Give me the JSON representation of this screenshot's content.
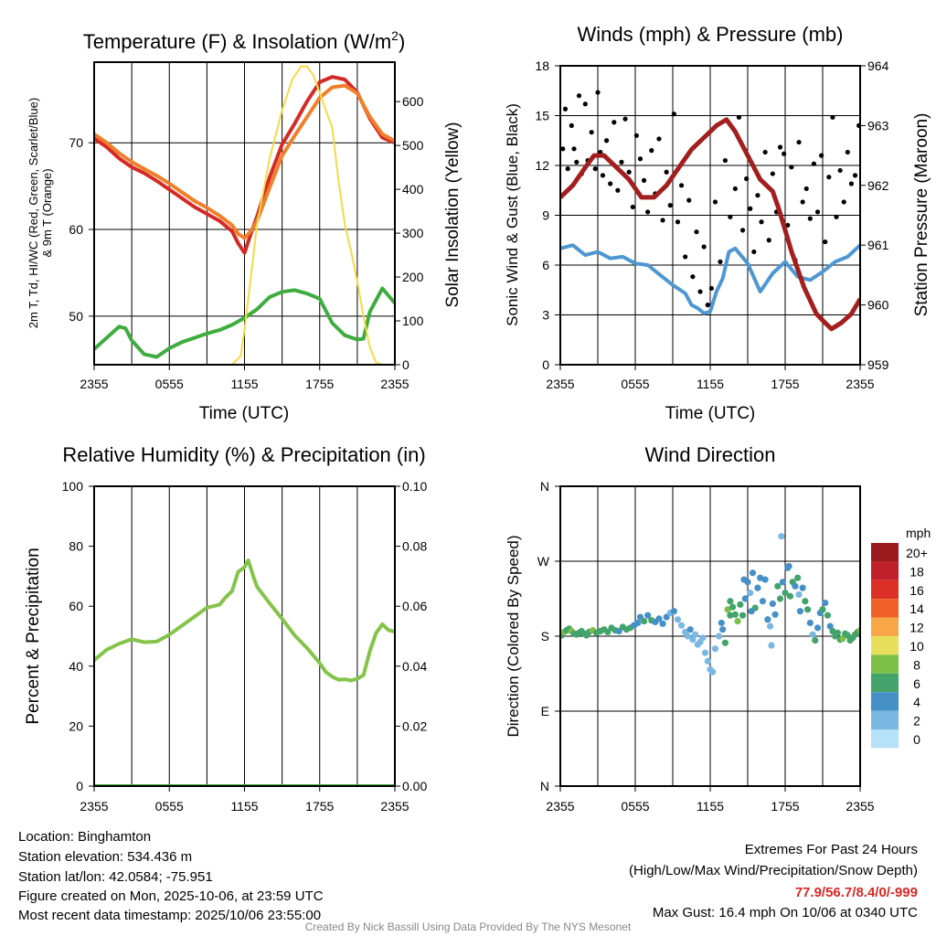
{
  "chart_data": [
    {
      "type": "line",
      "title": "Temperature (F) & Insolation (W/m²)",
      "title_main": "Temperature (F) & Insolation (W/m",
      "title_sup": "2",
      "title_end": ")",
      "xlabel": "Time (UTC)",
      "ylabel_line1": "2m T, Td, HI/WC (Red, Green, Scarlet/Blue)",
      "ylabel_line2": "& 9m T (Orange)",
      "ylabel_right": "Solar Insolation (Yellow)",
      "x_ticks": [
        "2355",
        "0555",
        "1155",
        "1755",
        "2355"
      ],
      "ylim": [
        44.4,
        79.3
      ],
      "y_ticks": [
        "50",
        "60",
        "70"
      ],
      "ylim_right": [
        0,
        690
      ],
      "y_ticks_right": [
        "0",
        "100",
        "200",
        "300",
        "400",
        "500",
        "600"
      ],
      "series": [
        {
          "name": "2m T",
          "color": "#d42a26",
          "axis": "left",
          "x": [
            0,
            1,
            2,
            3,
            4,
            5,
            6,
            7,
            8,
            9,
            10,
            11,
            11.5,
            12,
            12.5,
            13,
            14,
            15,
            16,
            17,
            18,
            19,
            20,
            21,
            22,
            23,
            24
          ],
          "values": [
            70.5,
            69.5,
            68.2,
            67.2,
            66.5,
            65.6,
            64.6,
            63.6,
            62.6,
            61.8,
            61,
            59.8,
            58.4,
            57.3,
            59.5,
            61.5,
            66,
            69.8,
            72.2,
            74.8,
            77,
            77.6,
            77.3,
            75.8,
            72.8,
            70.6,
            70
          ]
        },
        {
          "name": "9m T",
          "color": "#f07f2a",
          "axis": "left",
          "x": [
            0,
            1,
            2,
            3,
            4,
            5,
            6,
            7,
            8,
            9,
            10,
            11,
            11.5,
            12,
            12.5,
            13,
            14,
            15,
            16,
            17,
            18,
            19,
            20,
            21,
            22,
            23,
            24
          ],
          "values": [
            71,
            70,
            68.8,
            67.8,
            67,
            66.2,
            65.3,
            64.3,
            63.3,
            62.5,
            61.6,
            60.5,
            59.5,
            59,
            59.8,
            61,
            64.8,
            68.5,
            70.8,
            73,
            75.2,
            76.4,
            76.6,
            75.7,
            73,
            71,
            70.2
          ]
        },
        {
          "name": "2m Td",
          "color": "#3fac3f",
          "axis": "left",
          "x": [
            0,
            1,
            2,
            2.5,
            3,
            4,
            5,
            6,
            7,
            8,
            9,
            10,
            11,
            12,
            13,
            14,
            15,
            16,
            17,
            18,
            19,
            20,
            21,
            21.5,
            22,
            23,
            24
          ],
          "values": [
            46.2,
            47.5,
            48.8,
            48.6,
            47.2,
            45.6,
            45.3,
            46.3,
            47,
            47.5,
            48,
            48.4,
            49,
            49.8,
            50.8,
            52.2,
            52.8,
            53,
            52.6,
            52,
            49.2,
            47.8,
            47.3,
            47.4,
            50.5,
            53.2,
            51.5
          ]
        },
        {
          "name": "Solar Insolation",
          "color": "#f5d949",
          "axis": "right",
          "x": [
            0,
            11,
            11.7,
            12,
            12.5,
            13,
            14,
            15,
            15.8,
            16.5,
            17,
            17.5,
            18,
            18.5,
            19,
            19.5,
            20,
            20.5,
            21,
            21.5,
            22,
            22.5,
            23,
            24
          ],
          "values": [
            0,
            0,
            20,
            80,
            200,
            320,
            470,
            580,
            650,
            680,
            680,
            660,
            620,
            580,
            540,
            420,
            320,
            260,
            190,
            110,
            40,
            5,
            0,
            0
          ]
        }
      ]
    },
    {
      "type": "line",
      "title": "Winds (mph) & Pressure (mb)",
      "xlabel": "Time (UTC)",
      "ylabel": "Sonic Wind & Gust (Blue, Black)",
      "ylabel_right": "Station Pressure (Maroon)",
      "x_ticks": [
        "2355",
        "0555",
        "1155",
        "1755",
        "2355"
      ],
      "ylim": [
        0,
        18
      ],
      "y_ticks": [
        "0",
        "3",
        "6",
        "9",
        "12",
        "15",
        "18"
      ],
      "ylim_right": [
        959,
        964
      ],
      "y_ticks_right": [
        "959",
        "960",
        "961",
        "962",
        "963",
        "964"
      ],
      "series": [
        {
          "name": "Sonic Wind",
          "color": "#4d97d3",
          "axis": "left",
          "x": [
            0,
            1,
            2,
            3,
            4,
            5,
            6,
            7,
            8,
            9,
            10,
            10.5,
            11,
            11.5,
            12,
            12.5,
            13,
            13.5,
            14,
            15,
            16,
            17,
            18,
            19,
            20,
            21,
            22,
            23,
            24
          ],
          "values": [
            7,
            7.2,
            6.6,
            6.8,
            6.4,
            6.5,
            6.1,
            6,
            5.4,
            4.8,
            4.3,
            3.6,
            3.4,
            3.1,
            3.2,
            4.4,
            5.2,
            6.8,
            7,
            6.1,
            4.4,
            5.5,
            6.2,
            5.3,
            5.1,
            5.6,
            6.2,
            6.5,
            7.2
          ]
        },
        {
          "name": "Station Pressure",
          "color": "#a31e1e",
          "axis": "right",
          "x": [
            0,
            1,
            2,
            2.7,
            3.5,
            4.5,
            5.5,
            6.5,
            7.5,
            8.5,
            9.5,
            10.5,
            11.5,
            12.5,
            13.3,
            14,
            15,
            16,
            17,
            17.5,
            18.5,
            19.5,
            20.5,
            21.2,
            21.7,
            22.5,
            23.3,
            24
          ],
          "values": [
            961.8,
            962,
            962.3,
            962.5,
            962.5,
            962.3,
            962.1,
            961.8,
            961.8,
            962,
            962.3,
            962.6,
            962.8,
            963,
            963.1,
            962.9,
            962.5,
            962.1,
            961.9,
            961.6,
            960.9,
            960.3,
            959.85,
            959.7,
            959.6,
            959.7,
            959.85,
            960.1
          ]
        },
        {
          "name": "Gust",
          "color": "#000000",
          "axis": "left",
          "type": "scatter",
          "x": [
            0.2,
            0.4,
            0.6,
            0.9,
            1.1,
            1.3,
            1.5,
            1.7,
            2,
            2.2,
            2.5,
            2.8,
            3,
            3.2,
            3.4,
            3.7,
            4,
            4.3,
            4.6,
            4.9,
            5.2,
            5.5,
            5.8,
            6.1,
            6.4,
            6.7,
            7,
            7.3,
            7.6,
            7.9,
            8.2,
            8.5,
            8.8,
            9.1,
            9.4,
            9.7,
            10,
            10.3,
            10.6,
            10.9,
            11.2,
            11.5,
            11.8,
            12.1,
            12.4,
            12.8,
            13.2,
            13.6,
            14,
            14.3,
            14.6,
            14.9,
            15.2,
            15.5,
            15.8,
            16.1,
            16.4,
            16.7,
            17,
            17.3,
            17.6,
            17.9,
            18.2,
            18.5,
            18.8,
            19.1,
            19.4,
            19.7,
            20,
            20.3,
            20.6,
            20.9,
            21.2,
            21.5,
            21.8,
            22.1,
            22.4,
            22.7,
            23,
            23.3,
            23.6,
            23.9
          ],
          "values": [
            13,
            15.4,
            11.8,
            14.4,
            13,
            12.2,
            16.2,
            11.5,
            15.7,
            12.3,
            14,
            11.8,
            16.4,
            12.8,
            11.4,
            13.5,
            10.9,
            14.6,
            10.5,
            12.2,
            14.8,
            11.6,
            9.5,
            13.8,
            12.4,
            11.1,
            9.2,
            12.9,
            10.3,
            13.6,
            8.7,
            11.6,
            9.6,
            15.1,
            8.6,
            10.8,
            6.5,
            9.9,
            5.3,
            8,
            4.4,
            7.1,
            3.6,
            4.6,
            9.8,
            6.2,
            12.3,
            8.9,
            10.6,
            14.9,
            8.1,
            11.2,
            9.4,
            6.8,
            10.2,
            8.6,
            12.8,
            7.5,
            11.5,
            9.2,
            13.1,
            12.7,
            8.4,
            11.9,
            6.3,
            13.4,
            9.8,
            10.6,
            8.8,
            12.1,
            9.2,
            12.6,
            7.4,
            11.3,
            14.9,
            8.9,
            11.7,
            9.8,
            12.8,
            10.9,
            11.4,
            14.4
          ]
        }
      ]
    },
    {
      "type": "line",
      "title": "Relative Humidity (%) & Precipitation (in)",
      "ylabel": "Percent & Precipitation",
      "x_ticks": [
        "2355",
        "0555",
        "1155",
        "1755",
        "2355"
      ],
      "ylim": [
        0,
        100
      ],
      "y_ticks": [
        "0",
        "20",
        "40",
        "60",
        "80",
        "100"
      ],
      "ylim_right": [
        0,
        0.1
      ],
      "y_ticks_right": [
        "0.00",
        "0.02",
        "0.04",
        "0.06",
        "0.08",
        "0.10"
      ],
      "series": [
        {
          "name": "Relative Humidity",
          "color": "#83c449",
          "axis": "left",
          "x": [
            0,
            1,
            2,
            3,
            4,
            5,
            6,
            7,
            8,
            9,
            10,
            10.5,
            11,
            11.5,
            12,
            12.3,
            12.7,
            13,
            14,
            15,
            16,
            17,
            18,
            18.5,
            19,
            19.5,
            20,
            20.5,
            21,
            21.5,
            22,
            22.5,
            23,
            23.5,
            24
          ],
          "values": [
            42,
            45.5,
            47.5,
            49,
            48,
            48.2,
            50.5,
            53.5,
            56.5,
            59.5,
            60.5,
            63,
            65,
            71.5,
            73,
            75.3,
            70,
            66.5,
            61,
            55.8,
            50.3,
            46,
            41,
            38,
            36.5,
            35.5,
            35.6,
            35.2,
            35.8,
            37,
            45,
            51,
            54,
            52,
            51.5
          ]
        },
        {
          "name": "Precipitation",
          "color": "#3fac3f",
          "axis": "right",
          "x": [
            0,
            24
          ],
          "values": [
            0,
            0
          ]
        }
      ]
    },
    {
      "type": "scatter",
      "title": "Wind Direction",
      "ylabel": "Direction (Colored By Speed)",
      "x_ticks": [
        "2355",
        "0555",
        "1155",
        "1755",
        "2355"
      ],
      "ylim": [
        0,
        360
      ],
      "y_ticks": [
        "N",
        "E",
        "S",
        "W",
        "N"
      ],
      "colorbar": {
        "unit": "mph",
        "labels": [
          "20+",
          "18",
          "16",
          "14",
          "12",
          "10",
          "8",
          "6",
          "4",
          "2",
          "0"
        ],
        "colors": [
          "#9b1a1e",
          "#c0202a",
          "#dc3027",
          "#ef6127",
          "#f7a648",
          "#e8e05a",
          "#7cc04a",
          "#43a36a",
          "#4690c8",
          "#7ab8e2",
          "#b5e2f7"
        ]
      },
      "points": {
        "x": [
          0.1,
          0.3,
          0.5,
          0.7,
          0.9,
          1.1,
          1.3,
          1.5,
          1.7,
          1.9,
          2.1,
          2.3,
          2.6,
          2.9,
          3.2,
          3.5,
          3.8,
          4.1,
          4.4,
          4.7,
          5,
          5.3,
          5.6,
          5.9,
          6.2,
          6.4,
          6.7,
          7,
          7.3,
          7.6,
          7.9,
          8.2,
          8.5,
          8.8,
          9.1,
          9.4,
          9.7,
          10,
          10.2,
          10.4,
          10.6,
          10.8,
          11,
          11.2,
          11.4,
          11.6,
          11.8,
          12,
          12.2,
          12.4,
          12.7,
          13,
          13.2,
          13.4,
          13.6,
          13.8,
          14,
          14.2,
          14.4,
          14.6,
          14.8,
          15,
          15.2,
          15.4,
          15.6,
          15.8,
          16,
          16.2,
          16.4,
          16.6,
          16.8,
          17,
          17.2,
          17.4,
          17.6,
          17.8,
          18,
          18.2,
          18.4,
          18.6,
          18.8,
          19,
          19.2,
          19.4,
          19.6,
          19.8,
          20,
          20.2,
          20.4,
          20.6,
          20.8,
          21,
          21.2,
          21.4,
          21.6,
          21.8,
          22,
          22.2,
          22.4,
          22.6,
          22.8,
          23,
          23.2,
          23.4,
          23.6,
          23.8,
          24,
          14.7,
          15.3,
          16.9,
          17.7,
          18.3,
          19.1,
          13.6,
          12.9
        ],
        "y": [
          181,
          185,
          187,
          189,
          186,
          183,
          182,
          184,
          186,
          183,
          181,
          185,
          187,
          184,
          186,
          188,
          185,
          190,
          187,
          186,
          191,
          188,
          190,
          193,
          196,
          203,
          198,
          205,
          199,
          197,
          201,
          195,
          203,
          208,
          210,
          200,
          193,
          185,
          180,
          188,
          176,
          182,
          170,
          173,
          178,
          160,
          150,
          140,
          137,
          165,
          180,
          188,
          172,
          212,
          205,
          215,
          206,
          198,
          218,
          205,
          225,
          245,
          232,
          256,
          214,
          238,
          250,
          222,
          248,
          200,
          192,
          219,
          206,
          240,
          225,
          245,
          232,
          262,
          228,
          245,
          240,
          250,
          210,
          238,
          222,
          212,
          196,
          182,
          175,
          190,
          208,
          212,
          220,
          205,
          192,
          186,
          180,
          184,
          176,
          177,
          183,
          181,
          175,
          178,
          182,
          185,
          187,
          248,
          210,
          169,
          300,
          264,
          230,
          222,
          196
        ],
        "speed": [
          7,
          8,
          7,
          6,
          8,
          7,
          6,
          7,
          6,
          6,
          7,
          6,
          8,
          7,
          6,
          7,
          6,
          7,
          6,
          5,
          7,
          6,
          6,
          5,
          4,
          5,
          6,
          4,
          6,
          5,
          4,
          4,
          4,
          3,
          4,
          3,
          2,
          3,
          2,
          4,
          2,
          3,
          2,
          2,
          2,
          2,
          2,
          2,
          2,
          3,
          2,
          4,
          7,
          8,
          6,
          7,
          6,
          8,
          6,
          7,
          4,
          4,
          3,
          4,
          6,
          5,
          4,
          4,
          5,
          4,
          2,
          5,
          4,
          6,
          6,
          5,
          6,
          4,
          7,
          6,
          4,
          6,
          4,
          5,
          6,
          7,
          4,
          3,
          6,
          5,
          4,
          6,
          4,
          6,
          5,
          6,
          7,
          6,
          6,
          8,
          6,
          6,
          6,
          7,
          6,
          7,
          8,
          4,
          5,
          2,
          2,
          4,
          2,
          6,
          5
        ]
      }
    }
  ],
  "footer": {
    "location": "Location: Binghamton",
    "elevation": "Station elevation: 534.436 m",
    "latlon": "Station lat/lon: 42.0584; -75.951",
    "created": "Figure created on Mon, 2025-10-06, at 23:59 UTC",
    "recent": "Most recent data timestamp: 2025/10/06 23:55:00",
    "extremes_title": "Extremes For Past 24 Hours",
    "extremes_legend": "(High/Low/Max Wind/Precipitation/Snow Depth)",
    "extremes_values": "77.9/56.7/8.4/0/-999",
    "max_gust": "Max Gust: 16.4 mph On 10/06 at 0340 UTC",
    "credit": "Created By Nick Bassill Using Data Provided By The NYS Mesonet"
  },
  "colors": {
    "extremes": "#d42a26",
    "credit": "#888888"
  }
}
